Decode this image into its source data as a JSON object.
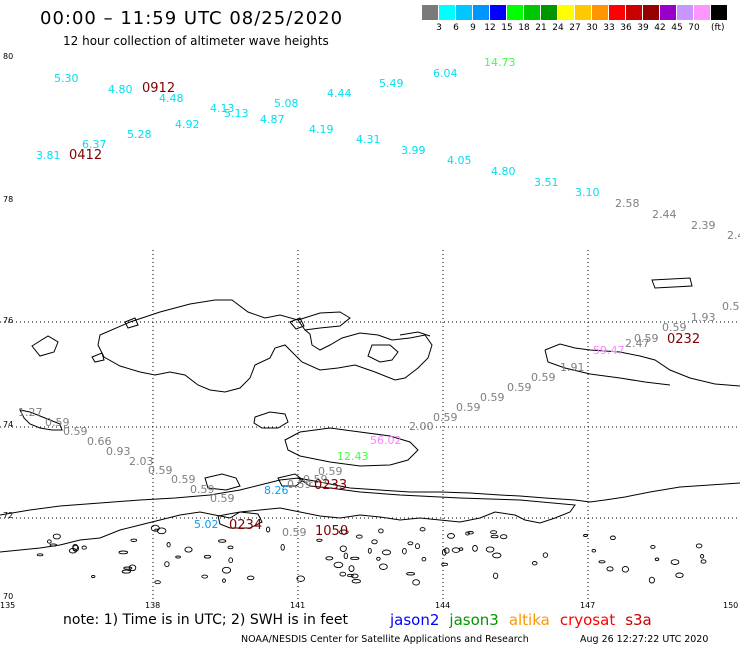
{
  "header": {
    "title": "00:00 – 11:59 UTC 08/25/2020",
    "subtitle": "12 hour collection of altimeter wave heights"
  },
  "scale": {
    "unit": "(ft)",
    "bins": [
      {
        "label": "",
        "color": "#7a7a7a"
      },
      {
        "label": "3",
        "color": "#00ffff"
      },
      {
        "label": "6",
        "color": "#00c8ff"
      },
      {
        "label": "9",
        "color": "#0096ff"
      },
      {
        "label": "12",
        "color": "#0000ff"
      },
      {
        "label": "15",
        "color": "#00ff00"
      },
      {
        "label": "18",
        "color": "#00c800"
      },
      {
        "label": "21",
        "color": "#009600"
      },
      {
        "label": "24",
        "color": "#ffff00"
      },
      {
        "label": "27",
        "color": "#ffc800"
      },
      {
        "label": "30",
        "color": "#ff9600"
      },
      {
        "label": "33",
        "color": "#ff0000"
      },
      {
        "label": "36",
        "color": "#c80000"
      },
      {
        "label": "39",
        "color": "#960000"
      },
      {
        "label": "42",
        "color": "#9600c8"
      },
      {
        "label": "45",
        "color": "#c896ff"
      },
      {
        "label": "70",
        "color": "#ff96ff"
      },
      {
        "label": "",
        "color": "#000000"
      }
    ]
  },
  "axes": {
    "lat_labels": [
      "80",
      "78",
      "76",
      "74",
      "72",
      "70"
    ],
    "lon_labels": [
      "135",
      "138",
      "141",
      "144",
      "147",
      "150"
    ]
  },
  "colors": {
    "jason2": "#0000ff",
    "jason3": "#009600",
    "altika": "#ff9600",
    "cryosat": "#ff0000",
    "s3a": "#c80000",
    "time": "#800000",
    "cyan": "#00e0f0",
    "grey": "#808080",
    "green": "#40ff40",
    "pink": "#ff80ff",
    "blue": "#00a0ff"
  },
  "tracks": {
    "times": [
      {
        "id": "t0912",
        "text": "0912"
      },
      {
        "id": "t0412",
        "text": "0412"
      },
      {
        "id": "t0232a",
        "text": "0232"
      },
      {
        "id": "t0233",
        "text": "0233"
      },
      {
        "id": "t0234",
        "text": "0234"
      },
      {
        "id": "t1050",
        "text": "1050"
      }
    ],
    "values": [
      {
        "text": "5.30",
        "c": "cyan"
      },
      {
        "text": "4.80",
        "c": "cyan"
      },
      {
        "text": "4.48",
        "c": "cyan"
      },
      {
        "text": "4.13",
        "c": "cyan"
      },
      {
        "text": "5.13",
        "c": "cyan"
      },
      {
        "text": "5.08",
        "c": "cyan"
      },
      {
        "text": "4.44",
        "c": "cyan"
      },
      {
        "text": "5.49",
        "c": "cyan"
      },
      {
        "text": "6.04",
        "c": "cyan"
      },
      {
        "text": "14.73",
        "c": "green"
      },
      {
        "text": "4.92",
        "c": "cyan"
      },
      {
        "text": "4.87",
        "c": "cyan"
      },
      {
        "text": "4.19",
        "c": "cyan"
      },
      {
        "text": "5.28",
        "c": "cyan"
      },
      {
        "text": "6.37",
        "c": "cyan"
      },
      {
        "text": "3.81",
        "c": "cyan"
      },
      {
        "text": "4.31",
        "c": "cyan"
      },
      {
        "text": "3.99",
        "c": "cyan"
      },
      {
        "text": "4.05",
        "c": "cyan"
      },
      {
        "text": "4.80",
        "c": "cyan"
      },
      {
        "text": "3.51",
        "c": "cyan"
      },
      {
        "text": "3.10",
        "c": "cyan"
      },
      {
        "text": "2.58",
        "c": "grey"
      },
      {
        "text": "2.44",
        "c": "grey"
      },
      {
        "text": "2.39",
        "c": "grey"
      },
      {
        "text": "2.4",
        "c": "grey"
      },
      {
        "text": "0.5",
        "c": "grey"
      },
      {
        "text": "1.93",
        "c": "grey"
      },
      {
        "text": "0.59",
        "c": "grey"
      },
      {
        "text": "0.59",
        "c": "grey"
      },
      {
        "text": "2.47",
        "c": "grey"
      },
      {
        "text": "59.47",
        "c": "pink"
      },
      {
        "text": "1.91",
        "c": "grey"
      },
      {
        "text": "0.59",
        "c": "grey"
      },
      {
        "text": "0.59",
        "c": "grey"
      },
      {
        "text": "0.59",
        "c": "grey"
      },
      {
        "text": "0.59",
        "c": "grey"
      },
      {
        "text": "0.59",
        "c": "grey"
      },
      {
        "text": "2.00",
        "c": "grey"
      },
      {
        "text": "56.02",
        "c": "pink"
      },
      {
        "text": "12.43",
        "c": "green"
      },
      {
        "text": "0.59",
        "c": "grey"
      },
      {
        "text": "0.59",
        "c": "grey"
      },
      {
        "text": "1.27",
        "c": "grey"
      },
      {
        "text": "0.59",
        "c": "grey"
      },
      {
        "text": "0.59",
        "c": "grey"
      },
      {
        "text": "0.66",
        "c": "grey"
      },
      {
        "text": "0.93",
        "c": "grey"
      },
      {
        "text": "2.03",
        "c": "grey"
      },
      {
        "text": "0.59",
        "c": "grey"
      },
      {
        "text": "0.59",
        "c": "grey"
      },
      {
        "text": "0.59",
        "c": "grey"
      },
      {
        "text": "0.59",
        "c": "grey"
      },
      {
        "text": "8.26",
        "c": "blue"
      },
      {
        "text": "0.59",
        "c": "grey"
      },
      {
        "text": "5.02",
        "c": "blue"
      },
      {
        "text": "0.59",
        "c": "grey"
      }
    ]
  },
  "footer": {
    "note": "note:  1) Time is in UTC;  2) SWH is in feet",
    "satellites": [
      {
        "name": "jason2",
        "c": "jason2"
      },
      {
        "name": "jason3",
        "c": "jason3"
      },
      {
        "name": "altika",
        "c": "altika"
      },
      {
        "name": "cryosat",
        "c": "cryosat"
      },
      {
        "name": "s3a",
        "c": "s3a"
      }
    ],
    "credit": "NOAA/NESDIS Center for Satellite Applications and Research",
    "timestamp": "Aug 26 12:27:22 UTC 2020"
  }
}
